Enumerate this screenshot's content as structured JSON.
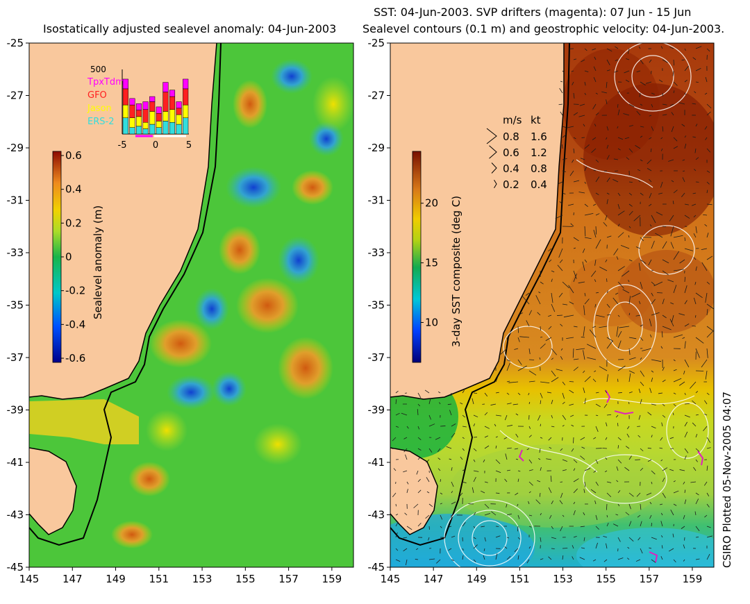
{
  "left_panel": {
    "title": "Isostatically adjusted sealevel anomaly: 04-Jun-2003",
    "colorbar": {
      "label": "Sealevel anomaly (m)",
      "ticks": [
        "0.6",
        "0.4",
        "0.2",
        "0",
        "-0.2",
        "-0.4",
        "-0.6"
      ],
      "range": [
        -0.6,
        0.6
      ]
    },
    "inset": {
      "max_label": "500",
      "legend": [
        {
          "name": "TpxTdm",
          "color": "#ff00ff"
        },
        {
          "name": "GFO",
          "color": "#ff2020"
        },
        {
          "name": "Jason",
          "color": "#ffff00"
        },
        {
          "name": "ERS-2",
          "color": "#33dddd"
        }
      ],
      "x_ticks": [
        "-5",
        "0",
        "5"
      ],
      "bars": [
        [
          0.15,
          0.25,
          0.2,
          0.25
        ],
        [
          0.1,
          0.2,
          0.15,
          0.1
        ],
        [
          0.1,
          0.1,
          0.15,
          0.12
        ],
        [
          0.12,
          0.2,
          0.1,
          0.08
        ],
        [
          0.08,
          0.15,
          0.2,
          0.15
        ],
        [
          0.1,
          0.12,
          0.1,
          0.1
        ],
        [
          0.15,
          0.3,
          0.15,
          0.2
        ],
        [
          0.1,
          0.2,
          0.2,
          0.18
        ],
        [
          0.1,
          0.1,
          0.15,
          0.15
        ],
        [
          0.15,
          0.25,
          0.2,
          0.25
        ]
      ]
    },
    "y_ticks": [
      "-25",
      "-27",
      "-29",
      "-31",
      "-33",
      "-35",
      "-37",
      "-39",
      "-41",
      "-43",
      "-45"
    ],
    "x_ticks": [
      "145",
      "147",
      "149",
      "151",
      "153",
      "155",
      "157",
      "159"
    ]
  },
  "right_panel": {
    "title_line1": "SST: 04-Jun-2003. SVP drifters (magenta): 07 Jun - 15 Jun",
    "title_line2": "Sealevel contours (0.1 m) and geostrophic velocity: 04-Jun-2003.",
    "colorbar": {
      "label": "3-day SST composite (deg C)",
      "ticks": [
        "20",
        "15",
        "10"
      ],
      "range": [
        7,
        24
      ]
    },
    "speed_key": {
      "header_ms": "m/s",
      "header_kt": "kt",
      "rows": [
        {
          "ms": "0.8",
          "kt": "1.6"
        },
        {
          "ms": "0.6",
          "kt": "1.2"
        },
        {
          "ms": "0.4",
          "kt": "0.8"
        },
        {
          "ms": "0.2",
          "kt": "0.4"
        }
      ]
    },
    "y_ticks": [
      "-25",
      "-27",
      "-29",
      "-31",
      "-33",
      "-35",
      "-37",
      "-39",
      "-41",
      "-43",
      "-45"
    ],
    "x_ticks": [
      "145",
      "147",
      "149",
      "151",
      "153",
      "155",
      "157",
      "159"
    ]
  },
  "credit": "CSIRO Plotted 05-Nov-2005 04:07",
  "colors": {
    "land": "#f9c89d",
    "coast": "#000000",
    "vectors": "#1a1a1a",
    "contours": "#ffffff",
    "drifters": "#e020c0"
  }
}
